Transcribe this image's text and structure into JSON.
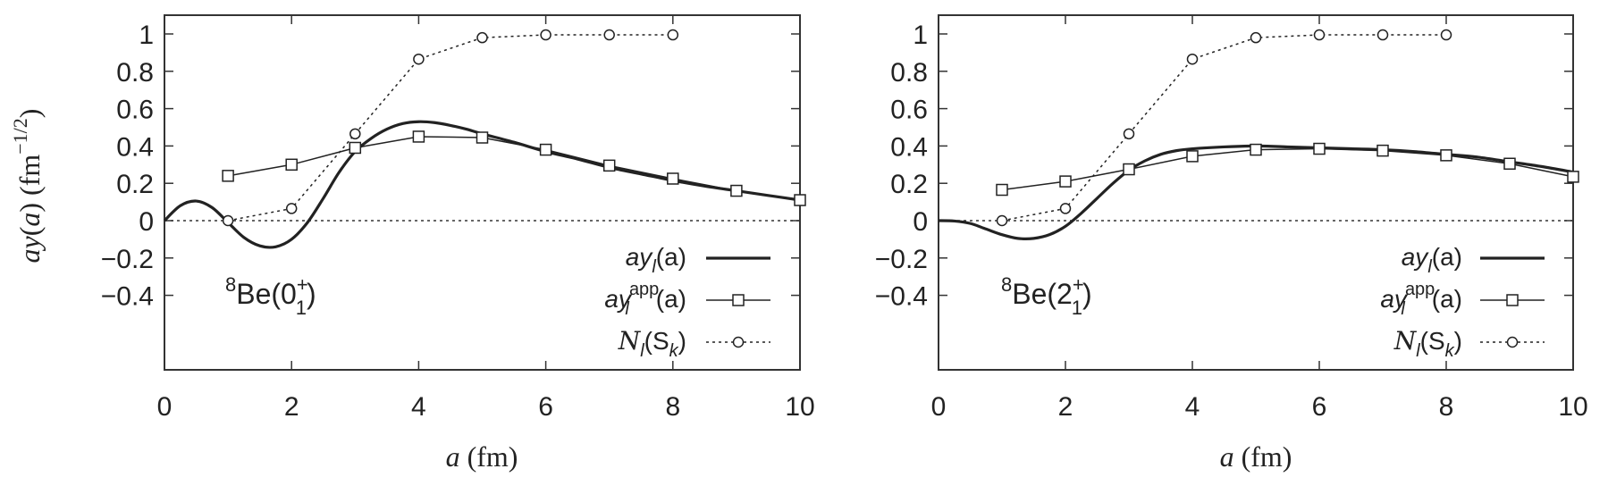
{
  "figure": {
    "ylabel_main": "ay",
    "ylabel_paren": "(",
    "ylabel_var": "a",
    "ylabel_close": ") (fm",
    "ylabel_exp": "−1/2",
    "ylabel_end": ")"
  },
  "chart_data": [
    {
      "type": "line",
      "panel_label": {
        "nucleus_mass": "8",
        "nucleus": "Be(0",
        "sup": "+",
        "sub": "1",
        "close": ")"
      },
      "xlabel": {
        "var": "a",
        "unit": " (fm)"
      },
      "xlim": [
        0,
        10
      ],
      "ylim": [
        -0.4,
        1.0
      ],
      "xticks": [
        "0",
        "2",
        "4",
        "6",
        "8",
        "10"
      ],
      "yticks": [
        "−0.4",
        "−0.2",
        "0",
        "0.2",
        "0.4",
        "0.6",
        "0.8",
        "1"
      ],
      "grid": false,
      "legend_position": "bottom-right",
      "zero_line": true,
      "series": [
        {
          "legend": {
            "base": "ay",
            "sub": "l",
            "sup": "",
            "arg": "(a)"
          },
          "style": "thick-solid",
          "x": [
            0,
            0.25,
            0.5,
            0.75,
            1.0,
            1.25,
            1.5,
            1.75,
            2.0,
            2.25,
            2.5,
            2.75,
            3.0,
            3.25,
            3.5,
            3.75,
            4.0,
            4.25,
            4.5,
            4.75,
            5.0,
            5.5,
            6.0,
            6.5,
            7.0,
            7.5,
            8.0,
            8.5,
            9.0,
            9.5,
            10.0
          ],
          "y": [
            0.0,
            0.08,
            0.105,
            0.07,
            -0.01,
            -0.09,
            -0.135,
            -0.14,
            -0.1,
            -0.01,
            0.12,
            0.26,
            0.37,
            0.44,
            0.49,
            0.52,
            0.53,
            0.525,
            0.51,
            0.49,
            0.465,
            0.42,
            0.37,
            0.33,
            0.285,
            0.25,
            0.215,
            0.185,
            0.16,
            0.135,
            0.11
          ]
        },
        {
          "legend": {
            "base": "ay",
            "sub": "l",
            "sup": "app",
            "arg": "(a)"
          },
          "style": "thin-solid-square",
          "x": [
            1,
            2,
            3,
            4,
            5,
            6,
            7,
            8,
            9,
            10
          ],
          "y": [
            0.24,
            0.3,
            0.39,
            0.45,
            0.445,
            0.38,
            0.295,
            0.225,
            0.16,
            0.11
          ]
        },
        {
          "legend": {
            "base": "N",
            "sub": "l",
            "sup": "",
            "arg": "(S",
            "arg_sub": "k",
            "arg_end": ")"
          },
          "style": "dotted-circle",
          "x": [
            1,
            2,
            3,
            4,
            5,
            6,
            7,
            8
          ],
          "y": [
            0.0,
            0.065,
            0.465,
            0.865,
            0.98,
            0.995,
            0.995,
            0.995
          ]
        }
      ]
    },
    {
      "type": "line",
      "panel_label": {
        "nucleus_mass": "8",
        "nucleus": "Be(2",
        "sup": "+",
        "sub": "1",
        "close": ")"
      },
      "xlabel": {
        "var": "a",
        "unit": " (fm)"
      },
      "xlim": [
        0,
        10
      ],
      "ylim": [
        -0.4,
        1.0
      ],
      "xticks": [
        "0",
        "2",
        "4",
        "6",
        "8",
        "10"
      ],
      "yticks": [
        "−0.4",
        "−0.2",
        "0",
        "0.2",
        "0.4",
        "0.6",
        "0.8",
        "1"
      ],
      "grid": false,
      "legend_position": "bottom-right",
      "zero_line": true,
      "series": [
        {
          "legend": {
            "base": "ay",
            "sub": "l",
            "sup": "",
            "arg": "(a)"
          },
          "style": "thick-solid",
          "x": [
            0,
            0.25,
            0.5,
            0.75,
            1.0,
            1.25,
            1.5,
            1.75,
            2.0,
            2.25,
            2.5,
            2.75,
            3.0,
            3.25,
            3.5,
            3.75,
            4.0,
            4.5,
            5.0,
            5.5,
            6.0,
            6.5,
            7.0,
            7.5,
            8.0,
            8.5,
            9.0,
            9.5,
            10.0
          ],
          "y": [
            0.0,
            -0.002,
            -0.015,
            -0.045,
            -0.075,
            -0.095,
            -0.095,
            -0.075,
            -0.03,
            0.04,
            0.12,
            0.2,
            0.27,
            0.32,
            0.355,
            0.375,
            0.385,
            0.395,
            0.4,
            0.395,
            0.39,
            0.385,
            0.38,
            0.37,
            0.355,
            0.34,
            0.315,
            0.29,
            0.26
          ]
        },
        {
          "legend": {
            "base": "ay",
            "sub": "l",
            "sup": "app",
            "arg": "(a)"
          },
          "style": "thin-solid-square",
          "x": [
            1,
            2,
            3,
            4,
            5,
            6,
            7,
            8,
            9,
            10
          ],
          "y": [
            0.165,
            0.21,
            0.275,
            0.345,
            0.38,
            0.385,
            0.375,
            0.35,
            0.305,
            0.235
          ]
        },
        {
          "legend": {
            "base": "N",
            "sub": "l",
            "sup": "",
            "arg": "(S",
            "arg_sub": "k",
            "arg_end": ")"
          },
          "style": "dotted-circle",
          "x": [
            1,
            2,
            3,
            4,
            5,
            6,
            7,
            8
          ],
          "y": [
            0.0,
            0.065,
            0.465,
            0.865,
            0.98,
            0.995,
            0.995,
            0.995
          ]
        }
      ]
    }
  ]
}
